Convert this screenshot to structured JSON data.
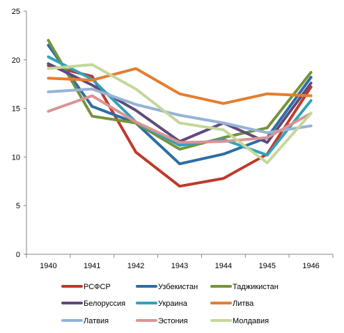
{
  "chart_data": {
    "type": "line",
    "title": "",
    "xlabel": "",
    "ylabel": "",
    "categories": [
      "1940",
      "1941",
      "1942",
      "1943",
      "1944",
      "1945",
      "1946"
    ],
    "ylim": [
      0,
      25
    ],
    "yticks": [
      "0",
      "5",
      "10",
      "15",
      "20",
      "25"
    ],
    "grid": false,
    "legend_position": "bottom",
    "series": [
      {
        "name": "РСФСР",
        "color": "#C0392B",
        "values": [
          19.4,
          18.3,
          10.5,
          7.0,
          7.8,
          10.3,
          17.2
        ]
      },
      {
        "name": "Узбекистан",
        "color": "#2E6DA4",
        "values": [
          21.5,
          15.2,
          13.5,
          9.3,
          10.3,
          12.0,
          18.2
        ]
      },
      {
        "name": "Таджикистан",
        "color": "#77933C",
        "values": [
          22.0,
          14.2,
          13.5,
          10.8,
          12.0,
          13.0,
          18.7
        ]
      },
      {
        "name": "Белоруссия",
        "color": "#604A7B",
        "values": [
          19.6,
          17.4,
          14.8,
          11.6,
          13.5,
          11.5,
          17.6
        ]
      },
      {
        "name": "Украина",
        "color": "#31A2BA",
        "values": [
          20.3,
          18.0,
          13.6,
          11.2,
          11.8,
          10.2,
          15.8
        ]
      },
      {
        "name": "Литва",
        "color": "#E47E30",
        "values": [
          18.1,
          17.9,
          19.1,
          16.5,
          15.5,
          16.5,
          16.3
        ]
      },
      {
        "name": "Латвия",
        "color": "#95B3D7",
        "values": [
          16.7,
          17.0,
          15.4,
          14.3,
          13.5,
          12.5,
          13.2
        ]
      },
      {
        "name": "Эстония",
        "color": "#D99594",
        "values": [
          14.7,
          16.3,
          13.6,
          11.5,
          11.6,
          12.0,
          14.5
        ]
      },
      {
        "name": "Молдавия",
        "color": "#C4D79B",
        "values": [
          19.1,
          19.5,
          17.0,
          13.5,
          12.8,
          9.4,
          14.5
        ]
      }
    ]
  }
}
